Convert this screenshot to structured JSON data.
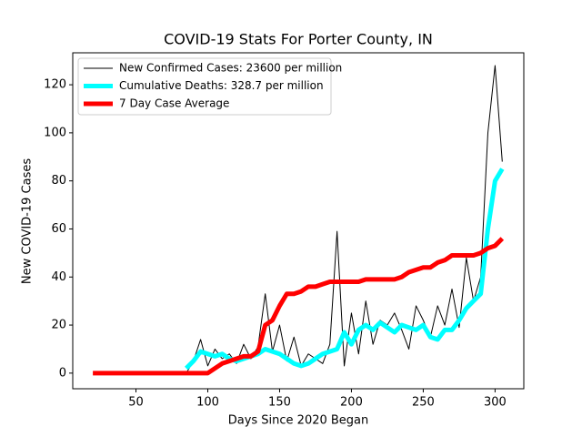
{
  "chart_data": {
    "type": "line",
    "title": "COVID-19 Stats For Porter County, IN",
    "xlabel": "Days Since 2020 Began",
    "ylabel": "New COVID-19 Cases",
    "legend": "upper left",
    "x": [
      20,
      25,
      30,
      35,
      40,
      45,
      50,
      55,
      60,
      65,
      70,
      75,
      80,
      85,
      90,
      95,
      100,
      105,
      110,
      115,
      120,
      125,
      130,
      135,
      140,
      145,
      150,
      155,
      160,
      165,
      170,
      175,
      180,
      185,
      190,
      195,
      200,
      205,
      210,
      215,
      220,
      225,
      230,
      235,
      240,
      245,
      250,
      255,
      260,
      265,
      270,
      275,
      280,
      285,
      290,
      295,
      300,
      305
    ],
    "series": [
      {
        "name": "New Confirmed Cases: 23600 per million",
        "color": "#000000",
        "width": 1,
        "values": [
          null,
          null,
          null,
          null,
          null,
          null,
          null,
          null,
          null,
          null,
          null,
          null,
          null,
          0,
          5,
          14,
          3,
          10,
          6,
          8,
          4,
          12,
          6,
          11,
          33,
          9,
          20,
          5,
          15,
          3,
          8,
          6,
          4,
          12,
          59,
          3,
          25,
          8,
          30,
          12,
          22,
          20,
          25,
          18,
          10,
          28,
          22,
          15,
          28,
          20,
          35,
          19,
          48,
          30,
          40,
          100,
          128,
          88
        ]
      },
      {
        "name": "Cumulative Deaths: 328.7 per million",
        "color": "#00ffff",
        "width": 5,
        "values": [
          null,
          null,
          null,
          null,
          null,
          null,
          null,
          null,
          null,
          null,
          null,
          null,
          null,
          2,
          5,
          9,
          8,
          7,
          8,
          6,
          5,
          6,
          7,
          8,
          10,
          9,
          8,
          6,
          4,
          3,
          4,
          6,
          8,
          9,
          10,
          17,
          12,
          18,
          20,
          18,
          21,
          19,
          17,
          20,
          19,
          18,
          20,
          15,
          14,
          18,
          18,
          22,
          27,
          30,
          33,
          60,
          80,
          85
        ]
      },
      {
        "name": "7 Day Case Average",
        "color": "#ff0000",
        "width": 5,
        "values": [
          0,
          0,
          0,
          0,
          0,
          0,
          0,
          0,
          0,
          0,
          0,
          0,
          0,
          0,
          0,
          0,
          0,
          2,
          4,
          5,
          6,
          7,
          7,
          9,
          20,
          22,
          28,
          33,
          33,
          34,
          36,
          36,
          37,
          38,
          38,
          38,
          38,
          38,
          39,
          39,
          39,
          39,
          39,
          40,
          42,
          43,
          44,
          44,
          46,
          47,
          49,
          49,
          49,
          49,
          50,
          52,
          53,
          56
        ]
      }
    ],
    "xlim": [
      6,
      320
    ],
    "ylim": [
      -6.5,
      133.3
    ],
    "xticks": [
      50,
      100,
      150,
      200,
      250,
      300
    ],
    "yticks": [
      0,
      20,
      40,
      60,
      80,
      100,
      120
    ]
  }
}
